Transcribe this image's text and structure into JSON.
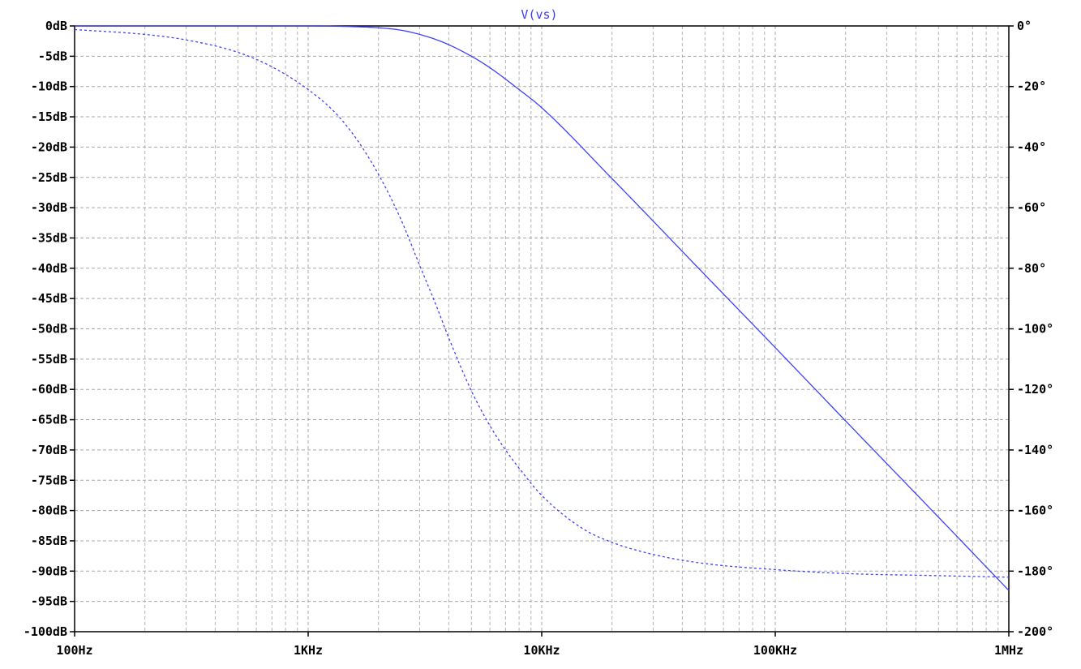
{
  "chart_data": {
    "type": "line",
    "title": "V(vs)",
    "xscale": "log",
    "xlim": [
      100,
      1000000
    ],
    "x_tick_values": [
      100,
      1000,
      10000,
      100000,
      1000000
    ],
    "x_tick_labels": [
      "100Hz",
      "1KHz",
      "10KHz",
      "100KHz",
      "1MHz"
    ],
    "y_left_lim": [
      -100,
      0
    ],
    "y_left_tick_values": [
      0,
      -5,
      -10,
      -15,
      -20,
      -25,
      -30,
      -35,
      -40,
      -45,
      -50,
      -55,
      -60,
      -65,
      -70,
      -75,
      -80,
      -85,
      -90,
      -95,
      -100
    ],
    "y_left_tick_labels": [
      "0dB",
      "-5dB",
      "-10dB",
      "-15dB",
      "-20dB",
      "-25dB",
      "-30dB",
      "-35dB",
      "-40dB",
      "-45dB",
      "-50dB",
      "-55dB",
      "-60dB",
      "-65dB",
      "-70dB",
      "-75dB",
      "-80dB",
      "-85dB",
      "-90dB",
      "-95dB",
      "-100dB"
    ],
    "y_right_lim": [
      -200,
      0
    ],
    "y_right_tick_values": [
      0,
      -20,
      -40,
      -60,
      -80,
      -100,
      -120,
      -140,
      -160,
      -180,
      -200
    ],
    "y_right_tick_labels": [
      "0°",
      "-20°",
      "-40°",
      "-60°",
      "-80°",
      "-100°",
      "-120°",
      "-140°",
      "-160°",
      "-180°",
      "-200°"
    ],
    "grid": true,
    "series_color": "#4040ff",
    "series": [
      {
        "axis": "left",
        "style": "solid",
        "x": [
          100,
          1000,
          1500,
          2000,
          2500,
          3000,
          3500,
          4000,
          5000,
          6000,
          8000,
          10000,
          20000,
          50000,
          100000,
          200000,
          500000,
          1000000
        ],
        "values": [
          0,
          0,
          -0.1,
          -0.3,
          -0.7,
          -1.4,
          -2.2,
          -3.1,
          -5.0,
          -6.9,
          -10.5,
          -13.5,
          -25.2,
          -41.1,
          -53.1,
          -65.2,
          -81.1,
          -93.2
        ]
      },
      {
        "axis": "right",
        "style": "dashed",
        "x": [
          100,
          200,
          300,
          500,
          700,
          1000,
          1300,
          1600,
          2000,
          2500,
          3000,
          3500,
          4000,
          5000,
          6000,
          7000,
          8000,
          10000,
          15000,
          20000,
          30000,
          50000,
          100000,
          200000,
          500000,
          1000000
        ],
        "values": [
          -1.2,
          -2.8,
          -4.6,
          -8.7,
          -13.5,
          -21.0,
          -28.5,
          -37.0,
          -49.0,
          -64.0,
          -79.0,
          -91.5,
          -103.0,
          -120.5,
          -132.0,
          -140.0,
          -146.0,
          -155.0,
          -166.0,
          -170.5,
          -174.5,
          -177.5,
          -179.5,
          -180.8,
          -181.5,
          -182.0
        ]
      }
    ]
  }
}
